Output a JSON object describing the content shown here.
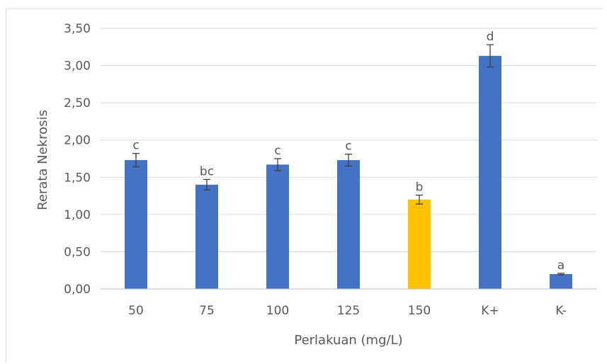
{
  "chart_data": {
    "type": "bar",
    "categories": [
      "50",
      "75",
      "100",
      "125",
      "150",
      "K+",
      "K-"
    ],
    "values": [
      1.73,
      1.4,
      1.67,
      1.73,
      1.2,
      3.13,
      0.2
    ],
    "errors": [
      0.09,
      0.07,
      0.08,
      0.08,
      0.06,
      0.15,
      0.01
    ],
    "annotations": [
      "c",
      "bc",
      "c",
      "c",
      "b",
      "d",
      "a"
    ],
    "bar_colors": [
      "#4472C4",
      "#4472C4",
      "#4472C4",
      "#4472C4",
      "#FFC000",
      "#4472C4",
      "#4472C4"
    ],
    "title": "",
    "xlabel": "Perlakuan (mg/L)",
    "ylabel": "Rerata Nekrosis",
    "ylim": [
      0,
      3.5
    ],
    "yticks": [
      "0,00",
      "0,50",
      "1,00",
      "1,50",
      "2,00",
      "2,50",
      "3,00",
      "3,50"
    ],
    "grid": true,
    "gridline_color": "#d9d9d9",
    "axis_line_color": "#bfbfbf",
    "error_bar_color": "#404040"
  }
}
